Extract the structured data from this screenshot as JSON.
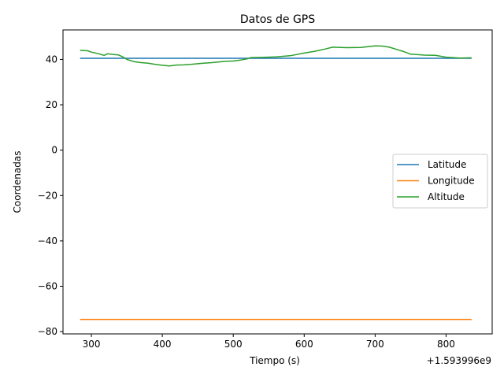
{
  "chart_data": {
    "type": "line",
    "title": "Datos de GPS",
    "xlabel": "Tiempo (s)",
    "ylabel": "Coordenadas",
    "x_offset_label": "+1.593996e9",
    "xlim": [
      260,
      865
    ],
    "ylim": [
      -81,
      53
    ],
    "x_ticks": [
      300,
      400,
      500,
      600,
      700,
      800
    ],
    "y_ticks": [
      -80,
      -60,
      -40,
      -20,
      0,
      20,
      40
    ],
    "y_tick_labels": [
      "−80",
      "−60",
      "−40",
      "−20",
      "0",
      "20",
      "40"
    ],
    "grid": false,
    "legend_position": "center-right",
    "series": [
      {
        "name": "Latitude",
        "color": "#1f77b4",
        "x": [
          285,
          835
        ],
        "y": [
          40.5,
          40.5
        ]
      },
      {
        "name": "Longitude",
        "color": "#ff7f0e",
        "x": [
          285,
          835
        ],
        "y": [
          -74.6,
          -74.6
        ]
      },
      {
        "name": "Altitude",
        "color": "#2ca02c",
        "x": [
          285,
          295,
          300,
          310,
          318,
          323,
          330,
          338,
          345,
          350,
          360,
          370,
          380,
          390,
          400,
          410,
          420,
          430,
          440,
          450,
          460,
          470,
          480,
          490,
          500,
          510,
          520,
          525,
          540,
          560,
          580,
          600,
          615,
          630,
          640,
          660,
          680,
          700,
          710,
          720,
          740,
          750,
          770,
          785,
          800,
          820,
          835
        ],
        "y": [
          44,
          43.8,
          43.2,
          42.5,
          41.8,
          42.5,
          42.2,
          42.0,
          41.0,
          40.0,
          39.0,
          38.6,
          38.3,
          37.8,
          37.4,
          37.1,
          37.5,
          37.6,
          37.8,
          38.1,
          38.4,
          38.6,
          38.9,
          39.2,
          39.3,
          39.7,
          40.3,
          40.8,
          40.9,
          41.1,
          41.6,
          42.8,
          43.6,
          44.6,
          45.4,
          45.2,
          45.3,
          46.0,
          45.9,
          45.4,
          43.5,
          42.3,
          41.9,
          41.8,
          41.0,
          40.6,
          40.7
        ]
      }
    ]
  }
}
